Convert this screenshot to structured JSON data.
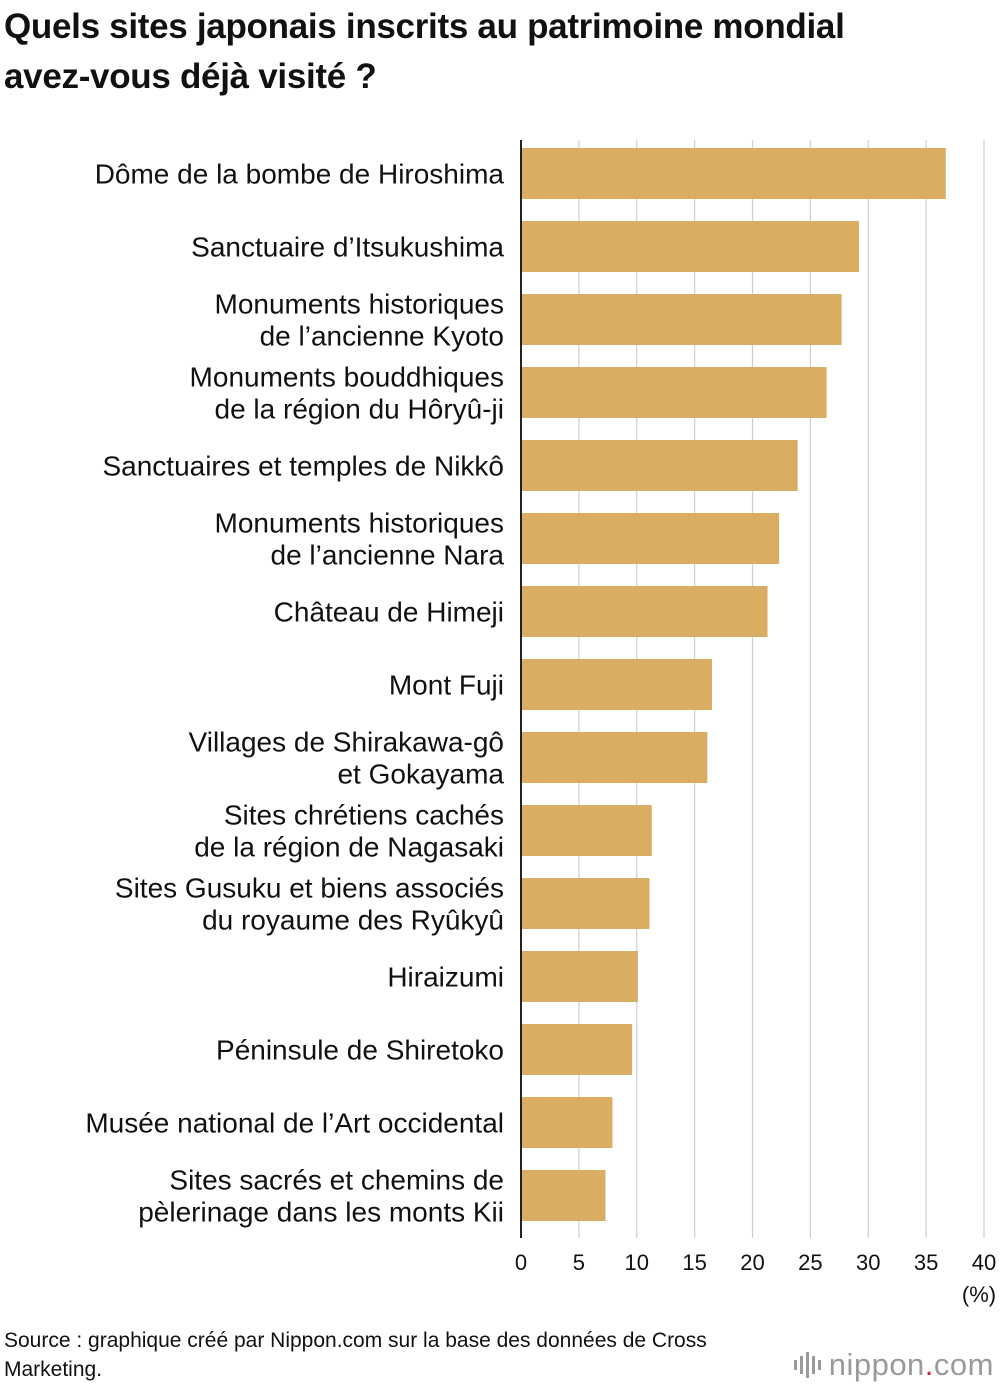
{
  "title_lines": [
    "Quels sites japonais inscrits au patrimoine mondial",
    "avez-vous déjà visité ?"
  ],
  "chart_data": {
    "type": "bar",
    "orientation": "horizontal",
    "categories": [
      [
        "Dôme de la bombe de Hiroshima"
      ],
      [
        "Sanctuaire d’Itsukushima"
      ],
      [
        "Monuments historiques",
        "de l’ancienne Kyoto"
      ],
      [
        "Monuments bouddhiques",
        "de la région du Hôryû-ji"
      ],
      [
        "Sanctuaires et temples de Nikkô"
      ],
      [
        "Monuments historiques",
        "de l’ancienne Nara"
      ],
      [
        "Château de Himeji"
      ],
      [
        "Mont Fuji"
      ],
      [
        "Villages de Shirakawa-gô",
        "et Gokayama"
      ],
      [
        "Sites chrétiens cachés",
        "de la région de Nagasaki"
      ],
      [
        "Sites Gusuku et biens associés",
        "du royaume des Ryûkyû"
      ],
      [
        "Hiraizumi"
      ],
      [
        "Péninsule de Shiretoko"
      ],
      [
        "Musée national de l’Art occidental"
      ],
      [
        "Sites sacrés et chemins de",
        "pèlerinage dans les monts Kii"
      ]
    ],
    "values": [
      36.7,
      29.2,
      27.7,
      26.4,
      23.9,
      22.3,
      21.3,
      16.5,
      16.1,
      11.3,
      11.1,
      10.1,
      9.6,
      7.9,
      7.3
    ],
    "xlim": [
      0,
      40
    ],
    "xticks": [
      0,
      5,
      10,
      15,
      20,
      25,
      30,
      35,
      40
    ],
    "unit": "(%)",
    "grid": true,
    "bar_color": "#d9ae62",
    "grid_color": "#cfcfcf",
    "axis_color": "#222222"
  },
  "source": "Source : graphique créé par Nippon.com sur la base des données de Cross Marketing.",
  "logo": {
    "icon": "nippon-waveform-icon",
    "name": "nippon",
    "dot": ".",
    "tld": "com"
  }
}
